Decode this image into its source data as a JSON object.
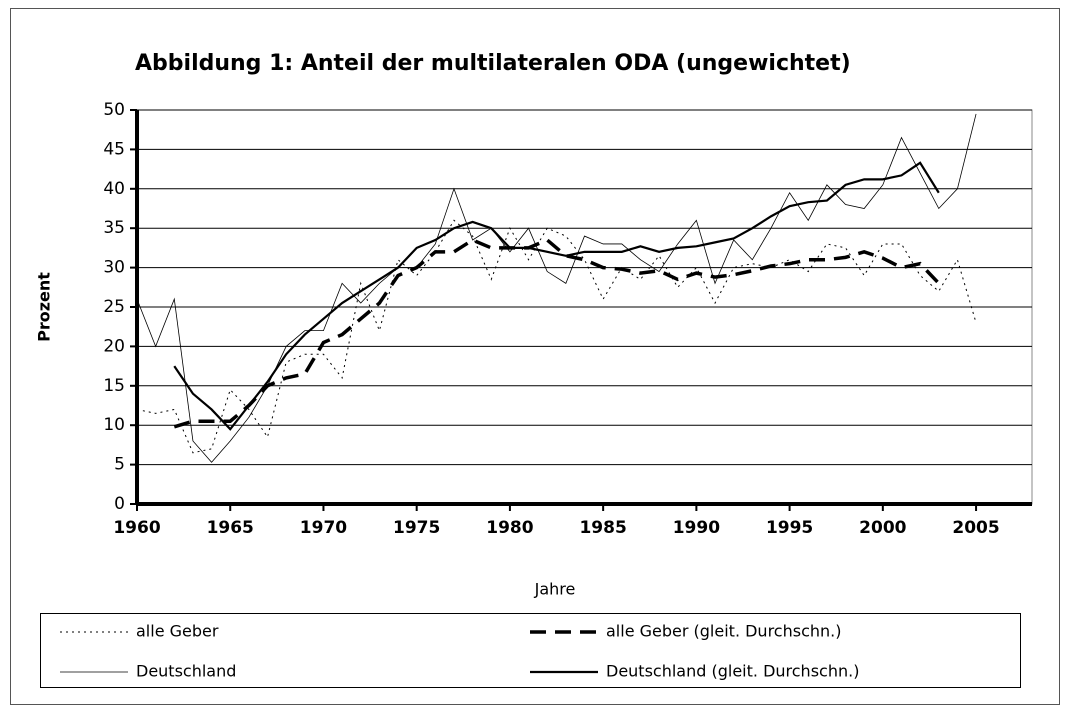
{
  "chart_data": {
    "type": "line",
    "title": "Abbildung 1: Anteil der multilateralen ODA (ungewichtet)",
    "x_label": "Jahre",
    "y_label": "Prozent",
    "x": [
      1960,
      1961,
      1962,
      1963,
      1964,
      1965,
      1966,
      1967,
      1968,
      1969,
      1970,
      1971,
      1972,
      1973,
      1974,
      1975,
      1976,
      1977,
      1978,
      1979,
      1980,
      1981,
      1982,
      1983,
      1984,
      1985,
      1986,
      1987,
      1988,
      1989,
      1990,
      1991,
      1992,
      1993,
      1994,
      1995,
      1996,
      1997,
      1998,
      1999,
      2000,
      2001,
      2002,
      2003,
      2004,
      2005
    ],
    "xlim": [
      1960,
      2008
    ],
    "xticks": [
      1960,
      1965,
      1970,
      1975,
      1980,
      1985,
      1990,
      1995,
      2000,
      2005
    ],
    "ylim": [
      0,
      50
    ],
    "yticks": [
      0,
      5,
      10,
      15,
      20,
      25,
      30,
      35,
      40,
      45,
      50
    ],
    "grid": true,
    "series": [
      {
        "name": "alle Geber",
        "color": "#000000",
        "dash": "dotted",
        "width": 1,
        "values": [
          12,
          11.5,
          12,
          6.5,
          7,
          14.5,
          12,
          8.5,
          18,
          19,
          19,
          16,
          28,
          22,
          31,
          29,
          32,
          36,
          34,
          28.5,
          35,
          31,
          35,
          34,
          31,
          26,
          30,
          28.5,
          31.5,
          27.5,
          30,
          25.5,
          30,
          30.5,
          30,
          31,
          29.5,
          33,
          32.5,
          29,
          33,
          33,
          29,
          27,
          31,
          23
        ]
      },
      {
        "name": "alle Geber (gleit. Durchschn.)",
        "color": "#000000",
        "dash": "dashed",
        "width": 3.5,
        "values": [
          null,
          null,
          9.8,
          10.5,
          10.5,
          10.5,
          12.5,
          15,
          16,
          16.5,
          20.5,
          21.5,
          23.5,
          25.5,
          29,
          30,
          32,
          32,
          33.5,
          32.5,
          32.5,
          32.5,
          33.5,
          31.5,
          31,
          30,
          29.8,
          29.3,
          29.6,
          28.5,
          29.3,
          28.8,
          29.1,
          29.6,
          30.2,
          30.5,
          31,
          31,
          31.3,
          32,
          31.2,
          30,
          30.5,
          28,
          null,
          null
        ]
      },
      {
        "name": "Deutschland",
        "color": "#000000",
        "dash": "solid",
        "width": 0.8,
        "values": [
          26,
          20,
          26,
          8,
          5.3,
          8,
          11,
          15,
          20,
          22,
          22,
          28,
          25.5,
          28,
          30,
          30,
          33,
          40,
          33.5,
          35,
          32,
          35,
          29.5,
          28,
          34,
          33,
          33,
          31,
          29.5,
          33,
          36,
          28,
          33.5,
          31,
          35,
          39.5,
          36,
          40.5,
          38,
          37.5,
          40.5,
          46.5,
          42,
          37.5,
          40,
          49.5
        ]
      },
      {
        "name": "Deutschland (gleit. Durchschn.)",
        "color": "#000000",
        "dash": "solid",
        "width": 2.2,
        "values": [
          null,
          null,
          17.5,
          14,
          12,
          9.5,
          12.5,
          15.5,
          19,
          21.5,
          23.5,
          25.5,
          27,
          28.5,
          30,
          32.5,
          33.5,
          35,
          35.8,
          35,
          32.5,
          32.5,
          32,
          31.5,
          32,
          32,
          32,
          32.7,
          32,
          32.5,
          32.7,
          33.2,
          33.7,
          35,
          36.5,
          37.8,
          38.3,
          38.5,
          40.5,
          41.2,
          41.2,
          41.7,
          43.3,
          39.5,
          null,
          null
        ]
      }
    ]
  }
}
